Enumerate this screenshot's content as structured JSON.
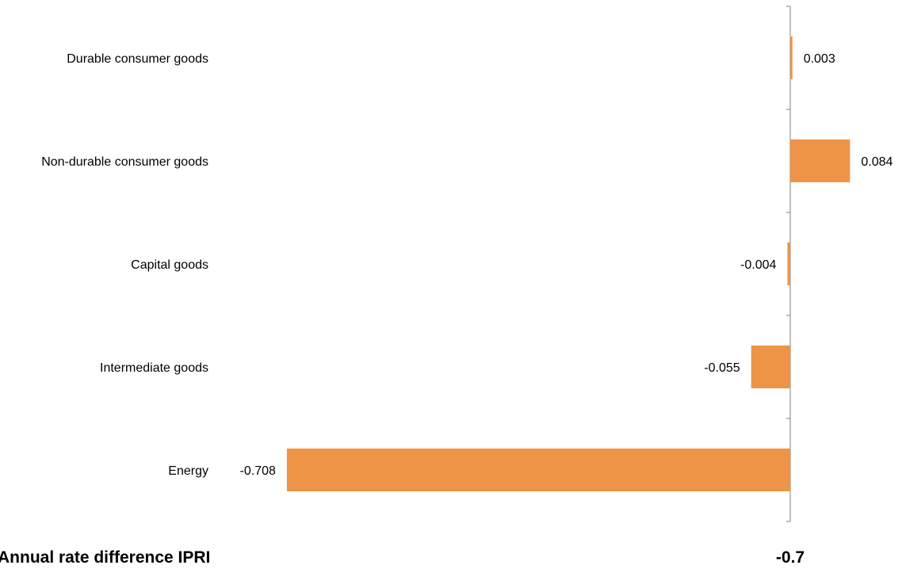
{
  "chart_data": {
    "type": "bar",
    "orientation": "horizontal",
    "categories": [
      "Durable consumer goods",
      "Non-durable consumer goods",
      "Capital goods",
      "Intermediate goods",
      "Energy"
    ],
    "values": [
      0.003,
      0.084,
      -0.004,
      -0.055,
      -0.708
    ],
    "value_labels": [
      "0.003",
      "0.084",
      "-0.004",
      "-0.055",
      "-0.708"
    ],
    "grid": false,
    "legend": "none",
    "bar_color": "#EE9446",
    "axis_color": "#808080"
  },
  "footer": {
    "label": "Annual rate difference IPRI",
    "total": "-0.7"
  }
}
